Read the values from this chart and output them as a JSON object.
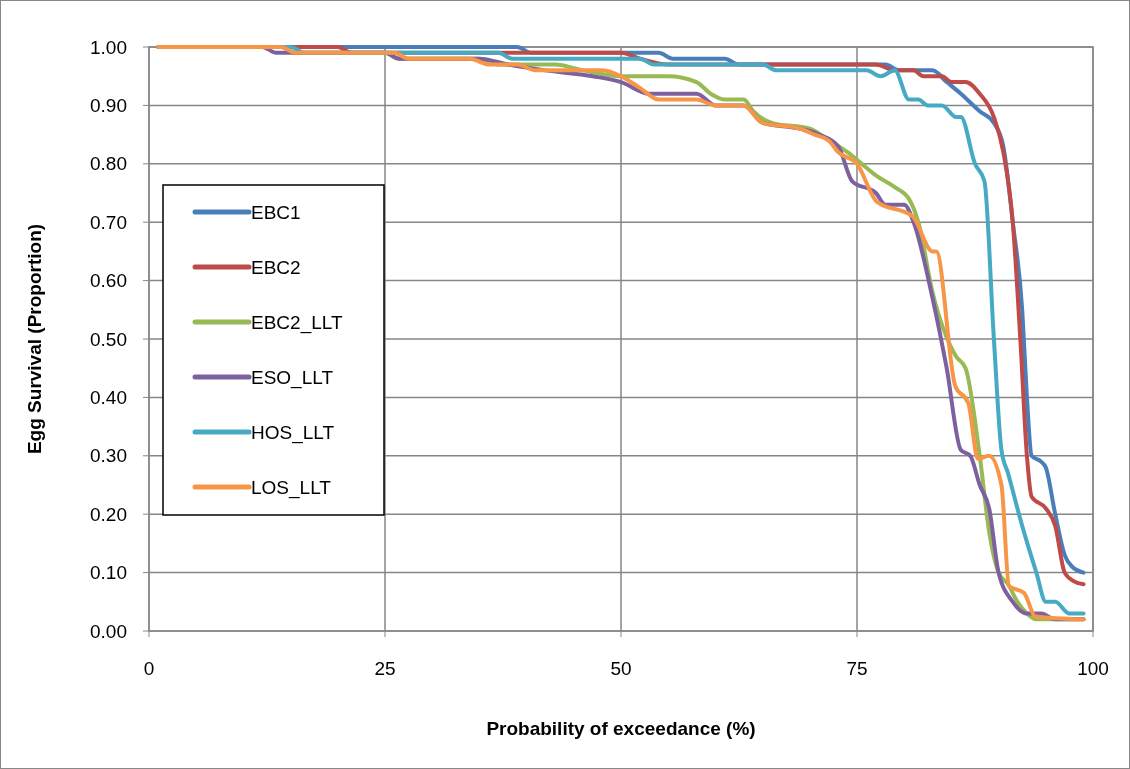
{
  "chart_data": {
    "type": "line",
    "xlabel": "Probability of exceedance (%)",
    "ylabel": "Egg Survival (Proportion)",
    "xlim": [
      0,
      100
    ],
    "xticks": [
      0,
      25,
      50,
      75,
      100
    ],
    "ylim": [
      0,
      1
    ],
    "yticks": [
      {
        "value": 0,
        "label": "0.00"
      },
      {
        "value": 0.1,
        "label": "0.10"
      },
      {
        "value": 0.2,
        "label": "0.20"
      },
      {
        "value": 0.3,
        "label": "0.30"
      },
      {
        "value": 0.4,
        "label": "0.40"
      },
      {
        "value": 0.5,
        "label": "0.50"
      },
      {
        "value": 0.6,
        "label": "0.60"
      },
      {
        "value": 0.7,
        "label": "0.70"
      },
      {
        "value": 0.8,
        "label": "0.80"
      },
      {
        "value": 0.9,
        "label": "0.90"
      },
      {
        "value": 1,
        "label": "1.00"
      }
    ],
    "grid": true,
    "legend": "left",
    "marker": "none",
    "line_style": "solid",
    "series": [
      {
        "name": "EBC1",
        "color": "#4a7ebb",
        "x": [
          1,
          39,
          40.5,
          54,
          55.5,
          61,
          62.5,
          78,
          79.5,
          83,
          84.5,
          86,
          88,
          89.5,
          90.5,
          91.5,
          92.5,
          93,
          93.5,
          94.5,
          95,
          96,
          97,
          97.8,
          99
        ],
        "values": [
          1,
          1,
          0.99,
          0.99,
          0.98,
          0.98,
          0.97,
          0.97,
          0.96,
          0.96,
          0.94,
          0.92,
          0.89,
          0.87,
          0.83,
          0.7,
          0.55,
          0.4,
          0.3,
          0.29,
          0.28,
          0.2,
          0.13,
          0.11,
          0.1
        ]
      },
      {
        "name": "EBC2",
        "color": "#be4b48",
        "x": [
          1,
          20,
          21.5,
          50,
          52,
          55,
          77,
          79,
          81,
          82,
          84,
          85,
          86.5,
          88,
          89.5,
          90.5,
          91.5,
          92.3,
          93,
          93.5,
          95,
          96,
          97,
          98,
          99
        ],
        "values": [
          1,
          1,
          0.99,
          0.99,
          0.98,
          0.97,
          0.97,
          0.96,
          0.96,
          0.95,
          0.95,
          0.94,
          0.94,
          0.92,
          0.88,
          0.82,
          0.7,
          0.5,
          0.3,
          0.23,
          0.21,
          0.18,
          0.1,
          0.085,
          0.08
        ]
      },
      {
        "name": "EBC2_LLT",
        "color": "#98b954",
        "x": [
          1,
          14,
          15.5,
          25,
          26.5,
          35,
          37,
          43,
          46,
          50,
          55,
          58,
          59.5,
          61,
          63,
          64,
          66,
          70,
          72,
          74,
          75.5,
          77,
          79,
          80.5,
          81.5,
          83,
          85.5,
          86.5,
          88,
          89,
          90,
          91,
          92,
          93,
          94,
          99
        ],
        "values": [
          1,
          1,
          0.99,
          0.99,
          0.98,
          0.98,
          0.97,
          0.97,
          0.96,
          0.95,
          0.95,
          0.94,
          0.92,
          0.91,
          0.91,
          0.89,
          0.87,
          0.86,
          0.84,
          0.82,
          0.8,
          0.78,
          0.76,
          0.74,
          0.7,
          0.58,
          0.47,
          0.45,
          0.3,
          0.17,
          0.1,
          0.08,
          0.05,
          0.03,
          0.02,
          0.02
        ]
      },
      {
        "name": "ESO_LLT",
        "color": "#7d60a0",
        "x": [
          1,
          12,
          13.5,
          25,
          26.5,
          35,
          38,
          42,
          47,
          50,
          53,
          58,
          60,
          63,
          65,
          69,
          71,
          73,
          74.5,
          77,
          78,
          80,
          81,
          83,
          84.5,
          86,
          87,
          88,
          89,
          90,
          91.5,
          93,
          94.5,
          96,
          99
        ],
        "values": [
          1,
          1,
          0.99,
          0.99,
          0.98,
          0.98,
          0.97,
          0.96,
          0.95,
          0.94,
          0.92,
          0.92,
          0.9,
          0.9,
          0.87,
          0.86,
          0.85,
          0.83,
          0.77,
          0.75,
          0.73,
          0.73,
          0.7,
          0.57,
          0.45,
          0.31,
          0.3,
          0.25,
          0.21,
          0.1,
          0.05,
          0.03,
          0.03,
          0.02,
          0.02
        ]
      },
      {
        "name": "HOS_LLT",
        "color": "#46aac5",
        "x": [
          1,
          15,
          16.5,
          37,
          38.5,
          52,
          53.5,
          65,
          66.5,
          76,
          77.5,
          79,
          80.5,
          81.5,
          82.5,
          84,
          85.5,
          86,
          87.5,
          88.5,
          89.5,
          90.3,
          91,
          92.5,
          94,
          95,
          96,
          97.5,
          99
        ],
        "values": [
          1,
          1,
          0.99,
          0.99,
          0.98,
          0.98,
          0.97,
          0.97,
          0.96,
          0.96,
          0.95,
          0.96,
          0.91,
          0.91,
          0.9,
          0.9,
          0.88,
          0.88,
          0.8,
          0.77,
          0.5,
          0.31,
          0.27,
          0.18,
          0.1,
          0.05,
          0.05,
          0.03,
          0.03
        ]
      },
      {
        "name": "LOS_LLT",
        "color": "#f79646",
        "x": [
          1,
          14,
          15.5,
          26,
          27.5,
          34,
          36,
          39,
          41,
          48,
          50,
          52,
          54,
          58,
          60,
          63,
          65,
          69,
          70.5,
          72,
          73,
          75,
          77.1,
          80.9,
          83,
          83.4,
          85.4,
          86.8,
          87.8,
          89,
          90.3,
          91.1,
          92.7,
          93.9,
          99
        ],
        "values": [
          1,
          1,
          0.99,
          0.99,
          0.98,
          0.98,
          0.97,
          0.97,
          0.96,
          0.96,
          0.95,
          0.93,
          0.91,
          0.91,
          0.9,
          0.9,
          0.87,
          0.86,
          0.85,
          0.84,
          0.82,
          0.8,
          0.735,
          0.71,
          0.65,
          0.65,
          0.42,
          0.39,
          0.295,
          0.3,
          0.25,
          0.077,
          0.065,
          0.025,
          0.02
        ]
      }
    ]
  }
}
